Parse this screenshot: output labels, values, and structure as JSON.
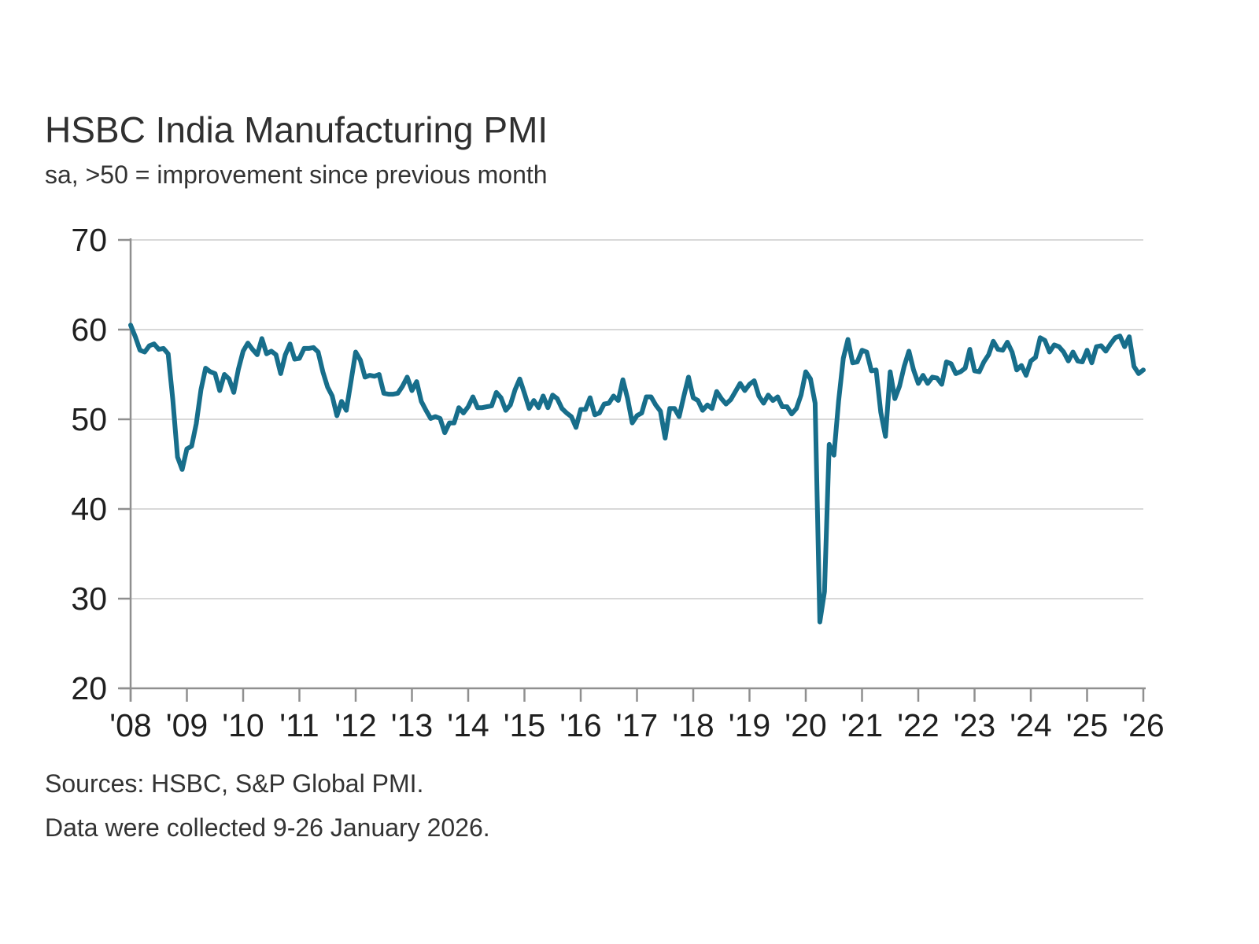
{
  "header": {
    "title": "HSBC India Manufacturing PMI",
    "subtitle": "sa, >50 = improvement since previous month"
  },
  "footer": {
    "sources": "Sources: HSBC, S&P Global PMI.",
    "collection_note": "Data were collected 9-26 January 2026."
  },
  "chart_data": {
    "type": "line",
    "title": "HSBC India Manufacturing PMI",
    "series_name": "India Manufacturing PMI, seasonally adjusted",
    "xlabel": "",
    "ylabel": "",
    "ylim": [
      20,
      70
    ],
    "y_ticks": [
      20,
      30,
      40,
      50,
      60,
      70
    ],
    "x_tick_labels": [
      "'08",
      "'09",
      "'10",
      "'11",
      "'12",
      "'13",
      "'14",
      "'15",
      "'16",
      "'17",
      "'18",
      "'19",
      "'20",
      "'21",
      "'22",
      "'23",
      "'24",
      "'25",
      "'26"
    ],
    "grid": "horizontal",
    "legend": "none",
    "line_color": "#176e8b",
    "frequency": "monthly",
    "years": [
      {
        "year": 2008,
        "values": [
          60.5,
          59.2,
          57.7,
          57.5,
          58.2,
          58.4,
          57.8,
          57.9,
          57.3,
          52.2,
          45.8,
          44.4
        ]
      },
      {
        "year": 2009,
        "values": [
          46.7,
          47.0,
          49.5,
          53.3,
          55.7,
          55.3,
          55.1,
          53.2,
          55.0,
          54.5,
          53.0,
          55.6
        ]
      },
      {
        "year": 2010,
        "values": [
          57.6,
          58.5,
          57.8,
          57.2,
          59.0,
          57.3,
          57.6,
          57.2,
          55.1,
          57.2,
          58.4,
          56.7
        ]
      },
      {
        "year": 2011,
        "values": [
          56.8,
          57.9,
          57.9,
          58.0,
          57.5,
          55.3,
          53.6,
          52.6,
          50.4,
          52.0,
          51.0,
          54.2
        ]
      },
      {
        "year": 2012,
        "values": [
          57.5,
          56.6,
          54.7,
          54.9,
          54.8,
          55.0,
          52.9,
          52.8,
          52.8,
          52.9,
          53.7,
          54.7
        ]
      },
      {
        "year": 2013,
        "values": [
          53.2,
          54.2,
          52.0,
          51.0,
          50.1,
          50.3,
          50.1,
          48.5,
          49.6,
          49.6,
          51.3,
          50.7
        ]
      },
      {
        "year": 2014,
        "values": [
          51.4,
          52.5,
          51.3,
          51.3,
          51.4,
          51.5,
          53.0,
          52.4,
          51.0,
          51.6,
          53.3,
          54.5
        ]
      },
      {
        "year": 2015,
        "values": [
          52.9,
          51.2,
          52.1,
          51.3,
          52.6,
          51.3,
          52.7,
          52.3,
          51.2,
          50.7,
          50.3,
          49.1
        ]
      },
      {
        "year": 2016,
        "values": [
          51.1,
          51.1,
          52.4,
          50.5,
          50.7,
          51.7,
          51.8,
          52.6,
          52.1,
          54.4,
          52.3,
          49.6
        ]
      },
      {
        "year": 2017,
        "values": [
          50.4,
          50.7,
          52.5,
          52.5,
          51.6,
          50.9,
          47.9,
          51.2,
          51.2,
          50.3,
          52.6,
          54.7
        ]
      },
      {
        "year": 2018,
        "values": [
          52.4,
          52.1,
          51.0,
          51.6,
          51.2,
          53.1,
          52.3,
          51.7,
          52.2,
          53.1,
          54.0,
          53.2
        ]
      },
      {
        "year": 2019,
        "values": [
          53.9,
          54.3,
          52.6,
          51.8,
          52.7,
          52.1,
          52.5,
          51.4,
          51.4,
          50.6,
          51.2,
          52.7
        ]
      },
      {
        "year": 2020,
        "values": [
          55.3,
          54.5,
          51.8,
          27.4,
          30.8,
          47.2,
          46.0,
          52.0,
          56.8,
          58.9,
          56.3,
          56.4
        ]
      },
      {
        "year": 2021,
        "values": [
          57.7,
          57.5,
          55.4,
          55.5,
          50.8,
          48.1,
          55.3,
          52.3,
          53.7,
          55.9,
          57.6,
          55.5
        ]
      },
      {
        "year": 2022,
        "values": [
          54.0,
          54.9,
          54.0,
          54.7,
          54.6,
          53.9,
          56.4,
          56.2,
          55.1,
          55.3,
          55.7,
          57.8
        ]
      },
      {
        "year": 2023,
        "values": [
          55.4,
          55.3,
          56.4,
          57.2,
          58.7,
          57.8,
          57.7,
          58.6,
          57.5,
          55.5,
          56.0,
          54.9
        ]
      },
      {
        "year": 2024,
        "values": [
          56.5,
          56.9,
          59.1,
          58.8,
          57.5,
          58.3,
          58.1,
          57.5,
          56.5,
          57.5,
          56.5,
          56.4
        ]
      },
      {
        "year": 2025,
        "values": [
          57.7,
          56.3,
          58.1,
          58.2,
          57.6,
          58.4,
          59.1,
          59.3,
          58.1,
          59.2,
          55.9,
          55.1
        ]
      },
      {
        "year": 2026,
        "values": [
          55.5
        ]
      }
    ]
  }
}
